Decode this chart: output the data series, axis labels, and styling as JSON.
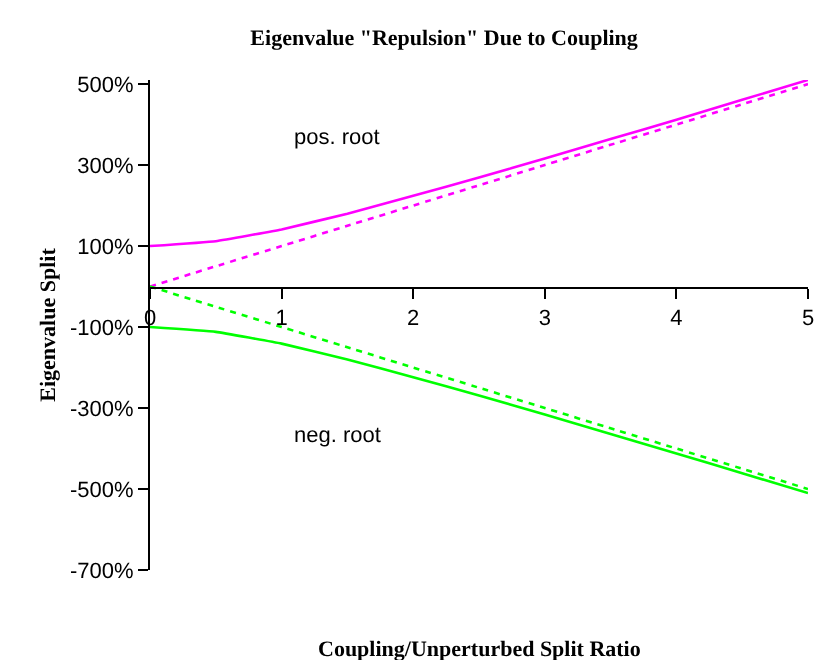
{
  "chart_data": {
    "type": "line",
    "title": "Eigenvalue \"Repulsion\" Due to Coupling",
    "xlabel": "Coupling/Unperturbed Split Ratio",
    "ylabel": "Eigenvalue Split",
    "x": [
      0,
      0.5,
      1,
      1.5,
      2,
      2.5,
      3,
      3.5,
      4,
      4.5,
      5
    ],
    "series": [
      {
        "name": "pos. root",
        "color": "#ff00ff",
        "line_style": "solid",
        "values": [
          100,
          112,
          141,
          180,
          224,
          269,
          316,
          364,
          412,
          461,
          510
        ]
      },
      {
        "color": "#ff00ff",
        "line_style": "dotted",
        "values": [
          0,
          50,
          100,
          150,
          200,
          250,
          300,
          350,
          400,
          450,
          500
        ]
      },
      {
        "name": "neg. root",
        "color": "#00ff00",
        "line_style": "solid",
        "values": [
          -100,
          -112,
          -141,
          -180,
          -224,
          -269,
          -316,
          -364,
          -412,
          -461,
          -510
        ]
      },
      {
        "color": "#00ff00",
        "line_style": "dotted",
        "values": [
          0,
          -50,
          -100,
          -150,
          -200,
          -250,
          -300,
          -350,
          -400,
          -450,
          -500
        ]
      }
    ],
    "xlim": [
      0,
      5
    ],
    "xticks": [
      0,
      1,
      2,
      3,
      4,
      5
    ],
    "ylim": [
      -700,
      510
    ],
    "yticks": [
      {
        "value": 500,
        "label": "500%"
      },
      {
        "value": 300,
        "label": "300%"
      },
      {
        "value": 100,
        "label": "100%"
      },
      {
        "value": -100,
        "label": "-100%"
      },
      {
        "value": -300,
        "label": "-300%"
      },
      {
        "value": -500,
        "label": "-500%"
      },
      {
        "value": -700,
        "label": "-700%"
      }
    ],
    "grid": false,
    "legend": false,
    "marker": "none"
  }
}
